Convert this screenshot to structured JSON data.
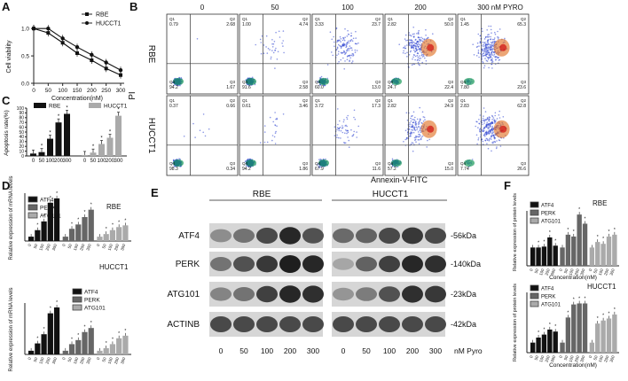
{
  "panels": {
    "A": {
      "letter": "A",
      "ylabel": "Cell viability",
      "xlabel": "Concentration(nM)",
      "xticks": [
        "0",
        "50",
        "100",
        "150",
        "200",
        "250",
        "300"
      ],
      "yticks": [
        "0.0",
        "0.5",
        "1.0"
      ],
      "legend": [
        "RBE",
        "HUCCT1"
      ],
      "chart_data": {
        "type": "line",
        "x": [
          0,
          50,
          100,
          150,
          200,
          250,
          300
        ],
        "ylim": [
          0,
          1.1
        ],
        "series": [
          {
            "name": "RBE",
            "values": [
              1.0,
              0.92,
              0.74,
              0.55,
              0.42,
              0.27,
              0.15
            ]
          },
          {
            "name": "HUCCT1",
            "values": [
              1.0,
              1.0,
              0.82,
              0.66,
              0.52,
              0.38,
              0.24
            ]
          }
        ]
      }
    },
    "B": {
      "letter": "B",
      "col_titles": [
        "0",
        "50",
        "100",
        "200",
        "300 nM PYRO"
      ],
      "row_labels": [
        "RBE",
        "HUCCT1"
      ],
      "ylabel": "PI",
      "xlabel": "Annexin-V-FITC",
      "quads": [
        [
          [
            "0.79",
            "2.68",
            "1.67",
            "94.2"
          ],
          [
            "1.00",
            "4.74",
            "2.58",
            "91.6"
          ],
          [
            "3.33",
            "23.7",
            "13.0",
            "60.0"
          ],
          [
            "2.82",
            "50.0",
            "22.4",
            "24.7"
          ],
          [
            "1.45",
            "65.3",
            "23.6",
            "7.80"
          ]
        ],
        [
          [
            "0.37",
            "0.66",
            "0.34",
            "98.3"
          ],
          [
            "0.61",
            "3.46",
            "1.86",
            "94.2"
          ],
          [
            "3.72",
            "17.3",
            "11.6",
            "67.9"
          ],
          [
            "2.82",
            "24.9",
            "15.0",
            "57.2"
          ],
          [
            "2.83",
            "62.8",
            "26.6",
            "7.74"
          ]
        ]
      ]
    },
    "C": {
      "letter": "C",
      "ylabel": "Apoptosis rate(%)",
      "yticks": [
        "0",
        "10",
        "20",
        "30",
        "40",
        "50",
        "60",
        "70",
        "80",
        "90",
        "100"
      ],
      "xticks": [
        "0",
        "50",
        "100",
        "200",
        "300",
        "0",
        "50",
        "100",
        "200",
        "300"
      ],
      "legend": [
        "RBE",
        "HUCCT1"
      ],
      "chart_data": {
        "type": "bar",
        "ylim": [
          0,
          100
        ],
        "series": [
          {
            "name": "RBE",
            "categories": [
              "0",
              "50",
              "100",
              "200",
              "300"
            ],
            "values": [
              5,
              8,
              36,
              70,
              88
            ]
          },
          {
            "name": "HUCCT1",
            "categories": [
              "0",
              "50",
              "100",
              "200",
              "300"
            ],
            "values": [
              2,
              7,
              25,
              38,
              84
            ]
          }
        ]
      }
    },
    "D": {
      "letter": "D",
      "ylabel": "Relative expression of mRNA levels",
      "titles": [
        "RBE",
        "HUCCT1"
      ],
      "legend": [
        "ATF4",
        "PERK",
        "ATG101"
      ],
      "conc": [
        "0",
        "50",
        "100",
        "200",
        "300"
      ],
      "chart_data": [
        {
          "type": "bar",
          "title": "RBE",
          "ylim": [
            0,
            11
          ],
          "series": [
            {
              "name": "ATF4",
              "values": [
                1,
                2.5,
                4.5,
                8.8,
                9.8
              ]
            },
            {
              "name": "PERK",
              "values": [
                1,
                2.8,
                3.8,
                5.5,
                7.2
              ]
            },
            {
              "name": "ATG101",
              "values": [
                1,
                1.6,
                2.5,
                3.2,
                3.6
              ]
            }
          ]
        },
        {
          "type": "bar",
          "title": "HUCCT1",
          "ylim": [
            0,
            14
          ],
          "series": [
            {
              "name": "ATF4",
              "values": [
                1,
                3.0,
                5.5,
                11.2,
                12.8
              ]
            },
            {
              "name": "PERK",
              "values": [
                1,
                2.8,
                3.9,
                6.1,
                7.2
              ]
            },
            {
              "name": "ATG101",
              "values": [
                1,
                1.7,
                2.8,
                4.4,
                5.1
              ]
            }
          ]
        }
      ]
    },
    "E": {
      "letter": "E",
      "groups": [
        "RBE",
        "HUCCT1"
      ],
      "proteins": [
        "ATF4",
        "PERK",
        "ATG101",
        "ACTINB"
      ],
      "sizes": [
        "-56kDa",
        "-140kDa",
        "-23kDa",
        "-42kDa"
      ],
      "lanes": [
        "0",
        "50",
        "100",
        "200",
        "300",
        "0",
        "50",
        "100",
        "200",
        "300"
      ],
      "unit": "nM Pyro",
      "intensity": [
        [
          0.35,
          0.5,
          0.75,
          0.95,
          0.7,
          0.55,
          0.6,
          0.75,
          0.85,
          0.75
        ],
        [
          0.5,
          0.7,
          0.85,
          1.0,
          0.95,
          0.2,
          0.6,
          0.8,
          0.95,
          0.9
        ],
        [
          0.4,
          0.5,
          0.8,
          0.95,
          0.9,
          0.3,
          0.45,
          0.7,
          0.9,
          0.85
        ],
        [
          0.75,
          0.75,
          0.75,
          0.75,
          0.75,
          0.75,
          0.75,
          0.75,
          0.75,
          0.75
        ]
      ]
    },
    "F": {
      "letter": "F",
      "ylabel": "Relative expression of protein levels",
      "titles": [
        "RBE",
        "HUCCT1"
      ],
      "legend": [
        "ATF4",
        "PERK",
        "ATG101"
      ],
      "xlabel": "Concentration(nM)",
      "conc": [
        "0",
        "50",
        "100",
        "200",
        "300"
      ],
      "chart_data": [
        {
          "type": "bar",
          "title": "RBE",
          "ylim": [
            0,
            3
          ],
          "series": [
            {
              "name": "ATF4",
              "values": [
                1.0,
                1.0,
                1.05,
                1.55,
                1.1
              ]
            },
            {
              "name": "PERK",
              "values": [
                1.0,
                1.7,
                1.6,
                2.8,
                2.3
              ]
            },
            {
              "name": "ATG101",
              "values": [
                1.0,
                1.3,
                1.2,
                1.6,
                1.7
              ]
            }
          ]
        },
        {
          "type": "bar",
          "title": "HUCCT1",
          "ylim": [
            0,
            6
          ],
          "series": [
            {
              "name": "ATF4",
              "values": [
                1.0,
                1.5,
                1.8,
                2.3,
                2.1
              ]
            },
            {
              "name": "PERK",
              "values": [
                1.0,
                3.5,
                4.8,
                4.9,
                4.9
              ]
            },
            {
              "name": "ATG101",
              "values": [
                1.0,
                2.9,
                3.2,
                3.4,
                3.8
              ]
            }
          ]
        }
      ]
    }
  }
}
